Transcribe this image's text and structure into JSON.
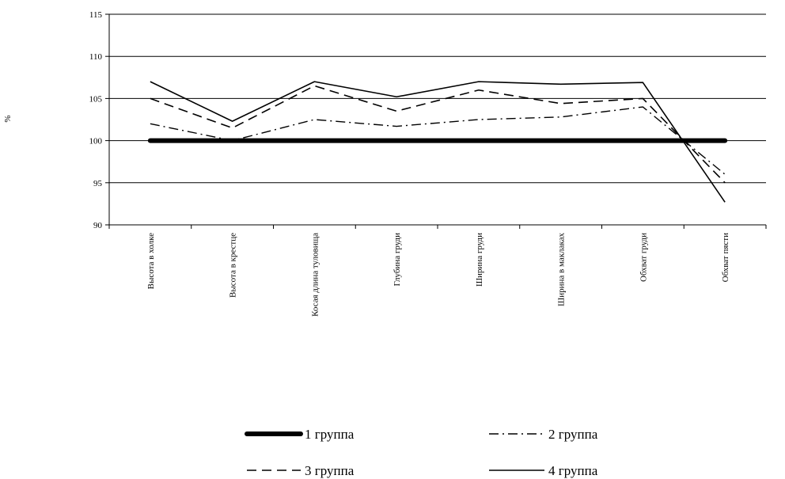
{
  "chart_data": {
    "type": "line",
    "title": "",
    "xlabel": "",
    "ylabel": "%",
    "ylim": [
      90,
      115
    ],
    "yticks": [
      90,
      95,
      100,
      105,
      110,
      115
    ],
    "grid": true,
    "legend_position": "bottom",
    "categories": [
      "Высота в холке",
      "Высота в крестце",
      "Косая длина туловища",
      "Глубина груди",
      "Ширина груди",
      "Ширина в маклаках",
      "Обхват груди",
      "Обхват пясти"
    ],
    "series": [
      {
        "name": "1 группа",
        "style": "thick",
        "values": [
          100,
          100,
          100,
          100,
          100,
          100,
          100,
          100
        ]
      },
      {
        "name": "2 группа",
        "style": "dashdot",
        "values": [
          102,
          100,
          102.5,
          101.7,
          102.5,
          102.8,
          104,
          96
        ]
      },
      {
        "name": "3 группа",
        "style": "dash",
        "values": [
          105,
          101.5,
          106.5,
          103.5,
          106,
          104.4,
          105,
          95
        ]
      },
      {
        "name": "4 группа",
        "style": "solid",
        "values": [
          107,
          102.3,
          107,
          105.2,
          107,
          106.7,
          106.9,
          92.7
        ]
      }
    ]
  }
}
